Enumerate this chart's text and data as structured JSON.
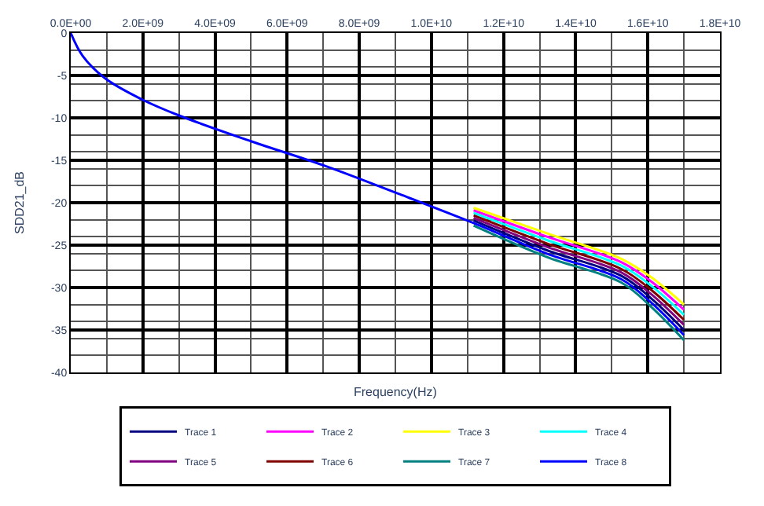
{
  "chart_data": {
    "type": "line",
    "xlabel": "Frequency(Hz)",
    "ylabel": "SDD21_dB",
    "xlim": [
      0,
      18000000000
    ],
    "xticks": [
      {
        "value": 0,
        "label": "0.0E+00"
      },
      {
        "value": 2000000000,
        "label": "2.0E+09"
      },
      {
        "value": 4000000000,
        "label": "4.0E+09"
      },
      {
        "value": 6000000000,
        "label": "6.0E+09"
      },
      {
        "value": 8000000000,
        "label": "8.0E+09"
      },
      {
        "value": 10000000000,
        "label": "1.0E+10"
      },
      {
        "value": 12000000000,
        "label": "1.2E+10"
      },
      {
        "value": 14000000000,
        "label": "1.4E+10"
      },
      {
        "value": 16000000000,
        "label": "1.6E+10"
      },
      {
        "value": 18000000000,
        "label": "1.8E+10"
      }
    ],
    "ylim": [
      -40,
      0
    ],
    "yticks": [
      0,
      -5,
      -10,
      -15,
      -20,
      -25,
      -30,
      -35,
      -40
    ],
    "grid": true,
    "legend": "bottom",
    "marker": "none",
    "line_style": "solid",
    "x": [
      0,
      330000000,
      940000000,
      1960000000,
      2990000000,
      5030000000,
      7080000000,
      9120000000,
      11170000000,
      13200000000,
      15260000000,
      16100000000,
      17000000000
    ],
    "series": [
      {
        "name": "Trace 1",
        "color": "#000080",
        "values": [
          null,
          null,
          null,
          null,
          null,
          null,
          null,
          null,
          -22.1,
          -25.6,
          -28.6,
          -31.3,
          -35.0
        ]
      },
      {
        "name": "Trace 2",
        "color": "#ff00ff",
        "values": [
          null,
          null,
          null,
          null,
          null,
          null,
          null,
          null,
          -20.9,
          -24.0,
          -27.0,
          -29.3,
          -32.6
        ]
      },
      {
        "name": "Trace 3",
        "color": "#ffff00",
        "values": [
          null,
          null,
          null,
          null,
          null,
          null,
          null,
          null,
          -20.6,
          -23.6,
          -26.6,
          -28.8,
          -32.0
        ]
      },
      {
        "name": "Trace 4",
        "color": "#00ffff",
        "values": [
          null,
          null,
          null,
          null,
          null,
          null,
          null,
          null,
          -21.2,
          -24.4,
          -27.4,
          -29.8,
          -33.2
        ]
      },
      {
        "name": "Trace 5",
        "color": "#800080",
        "values": [
          null,
          null,
          null,
          null,
          null,
          null,
          null,
          null,
          -21.8,
          -25.2,
          -28.2,
          -30.8,
          -34.4
        ]
      },
      {
        "name": "Trace 6",
        "color": "#800000",
        "values": [
          null,
          null,
          null,
          null,
          null,
          null,
          null,
          null,
          -21.5,
          -24.8,
          -27.8,
          -30.3,
          -33.8
        ]
      },
      {
        "name": "Trace 7",
        "color": "#008080",
        "values": [
          null,
          null,
          null,
          null,
          null,
          null,
          null,
          null,
          -22.7,
          -26.4,
          -29.4,
          -32.3,
          -36.2
        ]
      },
      {
        "name": "Trace 8",
        "color": "#0000ff",
        "values": [
          0,
          -2.7,
          -5.3,
          -7.8,
          -9.7,
          -12.8,
          -15.7,
          -19.0,
          -22.4,
          -26.0,
          -29.0,
          -31.8,
          -35.6
        ]
      }
    ]
  }
}
